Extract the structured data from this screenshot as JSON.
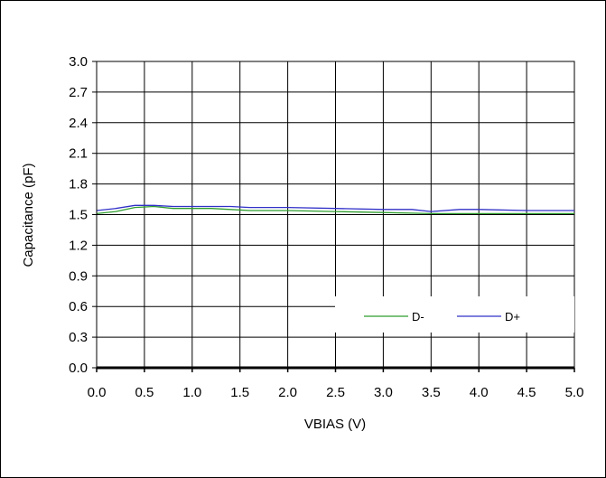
{
  "chart_data": {
    "type": "line",
    "title": "",
    "xlabel": "VBIAS (V)",
    "ylabel": "Capacitance (pF)",
    "xlim": [
      0.0,
      5.0
    ],
    "ylim": [
      0.0,
      3.0
    ],
    "x_ticks": [
      "0.0",
      "0.5",
      "1.0",
      "1.5",
      "2.0",
      "2.5",
      "3.0",
      "3.5",
      "4.0",
      "4.5",
      "5.0"
    ],
    "y_ticks": [
      "0.0",
      "0.3",
      "0.6",
      "0.9",
      "1.2",
      "1.5",
      "1.8",
      "2.1",
      "2.4",
      "2.7",
      "3.0"
    ],
    "x_tick_values": [
      0.0,
      0.5,
      1.0,
      1.5,
      2.0,
      2.5,
      3.0,
      3.5,
      4.0,
      4.5,
      5.0
    ],
    "y_tick_values": [
      0.0,
      0.3,
      0.6,
      0.9,
      1.2,
      1.5,
      1.8,
      2.1,
      2.4,
      2.7,
      3.0
    ],
    "grid": true,
    "legend": "bottom-right",
    "series": [
      {
        "name": "D-",
        "color": "#2e9e2e",
        "x": [
          0.0,
          0.2,
          0.4,
          0.6,
          0.8,
          1.0,
          1.2,
          1.4,
          1.6,
          1.8,
          2.0,
          2.5,
          3.0,
          3.5,
          4.0,
          4.5,
          5.0
        ],
        "y": [
          1.51,
          1.53,
          1.57,
          1.58,
          1.56,
          1.56,
          1.56,
          1.55,
          1.54,
          1.54,
          1.54,
          1.53,
          1.52,
          1.51,
          1.51,
          1.51,
          1.51
        ]
      },
      {
        "name": "D+",
        "color": "#3030c8",
        "x": [
          0.0,
          0.2,
          0.4,
          0.6,
          0.8,
          1.0,
          1.2,
          1.4,
          1.6,
          1.8,
          2.0,
          2.5,
          3.0,
          3.3,
          3.5,
          3.8,
          4.0,
          4.5,
          5.0
        ],
        "y": [
          1.54,
          1.56,
          1.59,
          1.59,
          1.58,
          1.58,
          1.58,
          1.58,
          1.57,
          1.57,
          1.57,
          1.56,
          1.55,
          1.55,
          1.53,
          1.55,
          1.55,
          1.54,
          1.54
        ]
      }
    ]
  }
}
